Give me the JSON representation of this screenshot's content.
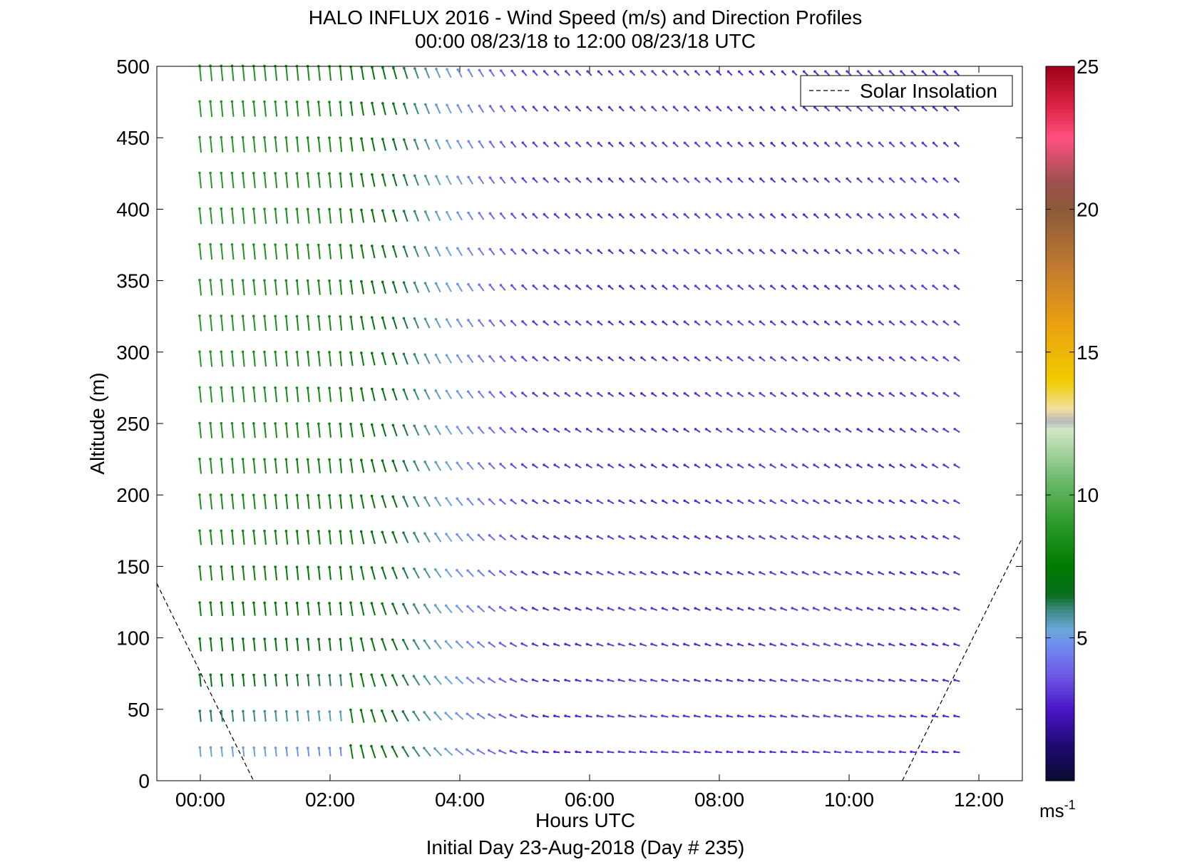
{
  "chart_data": {
    "type": "quiver",
    "title": "HALO INFLUX 2016 - Wind Speed (m/s) and Direction Profiles",
    "subtitle": "00:00 08/23/18 to 12:00 08/23/18  UTC",
    "xlabel": "Hours UTC",
    "ylabel": "Altitude (m)",
    "footer": "Initial Day 23-Aug-2018 (Day # 235)",
    "xlim": [
      -0.67,
      12.67
    ],
    "ylim": [
      0,
      500
    ],
    "xticks": [
      0,
      2,
      4,
      6,
      8,
      10,
      12
    ],
    "xtick_labels": [
      "00:00",
      "02:00",
      "04:00",
      "06:00",
      "08:00",
      "10:00",
      "12:00"
    ],
    "yticks": [
      0,
      50,
      100,
      150,
      200,
      250,
      300,
      350,
      400,
      450,
      500
    ],
    "ytick_labels": [
      "0",
      "50",
      "100",
      "150",
      "200",
      "250",
      "300",
      "350",
      "400",
      "450",
      "500"
    ],
    "legend": {
      "label": "Solar Insolation",
      "placement": "top-right",
      "line_style": "dashed"
    },
    "solar_insolation": [
      {
        "x": [
          -0.67,
          0.82
        ],
        "y": [
          138,
          0
        ]
      },
      {
        "x": [
          10.82,
          12.67
        ],
        "y": [
          0,
          170
        ]
      }
    ],
    "colorbar": {
      "unit_base": "ms",
      "unit_exp": "-1",
      "range": [
        0,
        25
      ],
      "ticks": [
        5,
        10,
        15,
        20,
        25
      ],
      "tick_labels": [
        "5",
        "10",
        "15",
        "20",
        "25"
      ],
      "stops": [
        {
          "v": 0,
          "c": "#0a0a2e"
        },
        {
          "v": 1.2,
          "c": "#1e0a70"
        },
        {
          "v": 2.5,
          "c": "#4b14c8"
        },
        {
          "v": 3.7,
          "c": "#6e5ae6"
        },
        {
          "v": 4.8,
          "c": "#6f8fee"
        },
        {
          "v": 5.3,
          "c": "#6aa8d8"
        },
        {
          "v": 6.0,
          "c": "#3a8a80"
        },
        {
          "v": 6.5,
          "c": "#0a6e1e"
        },
        {
          "v": 7.5,
          "c": "#007a00"
        },
        {
          "v": 9.0,
          "c": "#2a9a2a"
        },
        {
          "v": 10.5,
          "c": "#6ab86a"
        },
        {
          "v": 12.3,
          "c": "#d2e6c6"
        },
        {
          "v": 12.6,
          "c": "#b8b8b8"
        },
        {
          "v": 13.0,
          "c": "#f0e0a0"
        },
        {
          "v": 14.0,
          "c": "#f0cc00"
        },
        {
          "v": 16.0,
          "c": "#eaa010"
        },
        {
          "v": 18.0,
          "c": "#c07a30"
        },
        {
          "v": 20.0,
          "c": "#8c5a3a"
        },
        {
          "v": 21.0,
          "c": "#a05050"
        },
        {
          "v": 22.5,
          "c": "#ff5080"
        },
        {
          "v": 23.5,
          "c": "#e0284a"
        },
        {
          "v": 25.0,
          "c": "#a0001a"
        }
      ]
    },
    "wind_profile_grid": {
      "time_hours": [
        0.0,
        0.0833,
        0.1667,
        0.25,
        0.3333,
        0.4167,
        0.5,
        0.5833,
        0.6667,
        0.75,
        0.8333,
        0.9167,
        1.0,
        1.0833,
        1.1667,
        1.25,
        1.3333,
        1.4167,
        1.5,
        1.5833,
        1.6667,
        1.75,
        1.8333,
        1.9167,
        2.0,
        2.0833,
        2.1667,
        2.25,
        2.3333,
        2.4167,
        2.5,
        2.5833,
        2.6667,
        2.75,
        2.8333,
        2.9167,
        3.0,
        3.0833,
        3.1667,
        3.25,
        3.3333,
        3.4167,
        3.5,
        3.5833,
        3.6667,
        3.75,
        3.8333,
        3.9167,
        4.0,
        4.0833,
        4.1667,
        4.25,
        4.3333,
        4.4167,
        4.5,
        4.5833,
        4.6667,
        4.75,
        4.8333,
        4.9167,
        5.0,
        5.0833,
        5.1667,
        5.25,
        5.3333,
        5.4167,
        5.5,
        5.5833,
        5.6667,
        5.75,
        5.8333,
        5.9167,
        6.0,
        6.0833,
        6.1667,
        6.25,
        6.3333,
        6.4167,
        6.5,
        6.5833,
        6.6667,
        6.75,
        6.8333,
        6.9167,
        7.0,
        7.0833,
        7.1667,
        7.25,
        7.3333,
        7.4167,
        7.5,
        7.5833,
        7.6667,
        7.75,
        7.8333,
        7.9167,
        8.0,
        8.0833,
        8.1667,
        8.25,
        8.3333,
        8.4167,
        8.5,
        8.5833,
        8.6667,
        8.75,
        8.8333,
        8.9167,
        9.0,
        9.0833,
        9.1667,
        9.25,
        9.3333,
        9.4167,
        9.5,
        9.5833,
        9.6667,
        9.75,
        9.8333,
        9.9167,
        10.0,
        10.0833,
        10.1667,
        10.25,
        10.3333,
        10.4167,
        10.5,
        10.5833,
        10.6667,
        10.75,
        10.8333,
        10.9167,
        11.0,
        11.0833,
        11.1667,
        11.25,
        11.3333,
        11.4167,
        11.5,
        11.5833,
        11.6667,
        11.75
      ],
      "altitudes_m": [
        495,
        470,
        445,
        420,
        395,
        370,
        345,
        320,
        295,
        270,
        245,
        220,
        195,
        170,
        145,
        120,
        95,
        70,
        45,
        20
      ]
    }
  }
}
